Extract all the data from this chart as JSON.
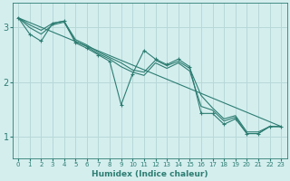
{
  "xlabel": "Humidex (Indice chaleur)",
  "bg_color": "#d4eeee",
  "grid_color": "#b8d8d8",
  "line_color": "#2d7d72",
  "xlim": [
    -0.5,
    23.5
  ],
  "ylim": [
    0.6,
    3.45
  ],
  "yticks": [
    1,
    2,
    3
  ],
  "xticks": [
    0,
    1,
    2,
    3,
    4,
    5,
    6,
    7,
    8,
    9,
    10,
    11,
    12,
    13,
    14,
    15,
    16,
    17,
    18,
    19,
    20,
    21,
    22,
    23
  ],
  "lines": [
    {
      "x": [
        0,
        1,
        2,
        3,
        4,
        5,
        6,
        7,
        8,
        9,
        10,
        11,
        12,
        13,
        14,
        15,
        16,
        17,
        18,
        19,
        20,
        21,
        22,
        23
      ],
      "y": [
        3.18,
        2.88,
        2.75,
        3.08,
        3.12,
        2.72,
        2.62,
        2.5,
        2.38,
        1.58,
        2.15,
        2.58,
        2.42,
        2.32,
        2.42,
        2.28,
        1.42,
        1.42,
        1.22,
        1.32,
        1.05,
        1.05,
        1.18,
        1.18
      ],
      "marker": "+"
    },
    {
      "x": [
        0,
        23
      ],
      "y": [
        3.18,
        1.18
      ],
      "marker": null
    },
    {
      "x": [
        0,
        1,
        2,
        3,
        4,
        5,
        6,
        7,
        8,
        9,
        10,
        11,
        12,
        13,
        14,
        15,
        16,
        17,
        18,
        19,
        20,
        21,
        22,
        23
      ],
      "y": [
        3.18,
        3.05,
        2.95,
        3.08,
        3.12,
        2.78,
        2.68,
        2.55,
        2.45,
        2.35,
        2.22,
        2.18,
        2.4,
        2.3,
        2.38,
        2.25,
        1.75,
        1.52,
        1.32,
        1.38,
        1.08,
        1.08,
        1.18,
        1.18
      ],
      "marker": null
    },
    {
      "x": [
        0,
        1,
        2,
        3,
        4,
        5,
        6,
        7,
        8,
        9,
        10,
        11,
        12,
        13,
        14,
        15,
        16,
        17,
        18,
        19,
        20,
        21,
        22,
        23
      ],
      "y": [
        3.18,
        3.0,
        2.88,
        3.05,
        3.1,
        2.75,
        2.65,
        2.52,
        2.42,
        2.28,
        2.18,
        2.12,
        2.35,
        2.25,
        2.35,
        2.2,
        1.55,
        1.48,
        1.28,
        1.35,
        1.05,
        1.05,
        1.18,
        1.18
      ],
      "marker": null
    }
  ]
}
